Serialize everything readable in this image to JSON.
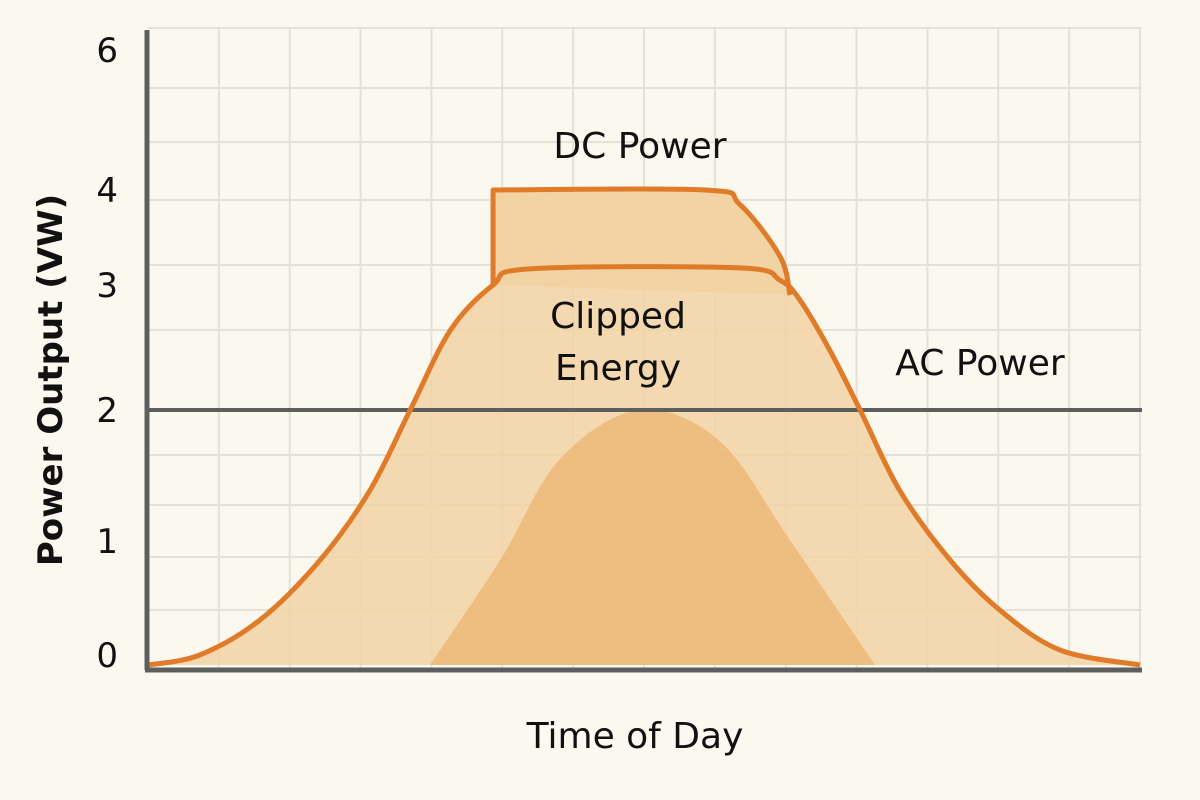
{
  "chart_data": {
    "type": "area",
    "title": "",
    "xlabel": "Time of Day",
    "ylabel": "Power Output (VW)",
    "y_ticks": [
      0,
      1,
      2,
      3,
      4,
      6
    ],
    "x_range": [
      0,
      14
    ],
    "grid": true,
    "clip_limit": 2,
    "annotations": {
      "dc": "DC Power",
      "clipped_line1": "Clipped",
      "clipped_line2": "Energy",
      "ac": "AC Power"
    },
    "series": [
      {
        "name": "AC Power",
        "points": [
          [
            0,
            0
          ],
          [
            0.73,
            0.08
          ],
          [
            1.58,
            0.36
          ],
          [
            2.43,
            0.84
          ],
          [
            3.13,
            1.38
          ],
          [
            3.7,
            2.0
          ],
          [
            4.27,
            2.64
          ],
          [
            4.87,
            3.0
          ],
          [
            5.39,
            3.17
          ],
          [
            8.35,
            3.18
          ],
          [
            8.92,
            3.05
          ],
          [
            9.2,
            2.88
          ],
          [
            9.62,
            2.48
          ],
          [
            10.05,
            2.0
          ],
          [
            10.61,
            1.38
          ],
          [
            11.32,
            0.84
          ],
          [
            12.02,
            0.44
          ],
          [
            12.87,
            0.12
          ],
          [
            14,
            0
          ]
        ]
      },
      {
        "name": "DC Power",
        "points": [
          [
            4.87,
            3.0
          ],
          [
            4.87,
            4.0
          ],
          [
            7.86,
            4.0
          ],
          [
            8.35,
            3.85
          ],
          [
            8.92,
            3.3
          ],
          [
            9.06,
            2.92
          ]
        ]
      },
      {
        "points": [
          [
            3.98,
            0
          ],
          [
            4.97,
            0.84
          ],
          [
            5.81,
            1.62
          ],
          [
            6.94,
            2.0
          ],
          [
            8.07,
            1.76
          ],
          [
            9.06,
            1.0
          ],
          [
            10.26,
            0
          ]
        ]
      }
    ],
    "colors": {
      "background": "#fbf8ef",
      "fill": "#f2d3a4",
      "inner_fill": "#ebb46f",
      "stroke": "#e07b2a",
      "axis": "#5d5f5e",
      "grid": "#e6e1d6"
    }
  }
}
